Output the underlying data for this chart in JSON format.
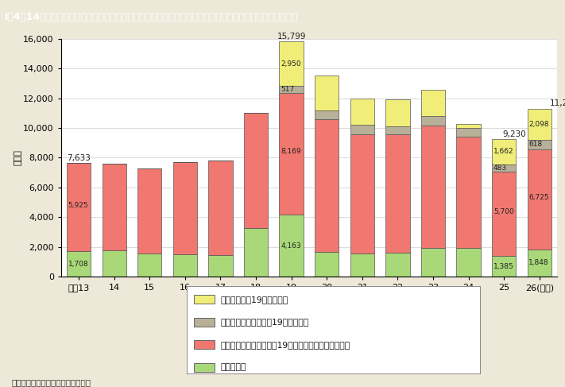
{
  "title": "I－4－14図　都道府県労働局雇用均等室に寄せられた職場におけるセクシュアル・ハラスメントの相談件数",
  "years": [
    "平成13",
    "14",
    "15",
    "16",
    "17",
    "18",
    "19",
    "20",
    "21",
    "22",
    "23",
    "24",
    "25",
    "26(年度)"
  ],
  "jigyounushi": [
    1708,
    1760,
    1540,
    1490,
    1440,
    3250,
    4163,
    1680,
    1580,
    1620,
    1950,
    1930,
    1385,
    1848
  ],
  "josei": [
    5925,
    5840,
    5760,
    6210,
    6360,
    7750,
    8169,
    8920,
    8020,
    7930,
    8200,
    7470,
    5700,
    6725
  ],
  "dansei": [
    0,
    0,
    0,
    0,
    0,
    0,
    517,
    600,
    590,
    580,
    630,
    590,
    483,
    618
  ],
  "sonota": [
    0,
    0,
    0,
    0,
    0,
    0,
    2950,
    2300,
    1810,
    1770,
    1760,
    290,
    1662,
    2098
  ],
  "color_jigyounushi": "#a8d878",
  "color_josei": "#f07870",
  "color_dansei": "#b8b098",
  "color_sonota": "#f0ee78",
  "bg_color": "#ede8d8",
  "plot_bg": "#ffffff",
  "title_bg": "#3a9ab8",
  "title_color": "#ffffff",
  "ylim_max": 16000,
  "ytick_step": 2000,
  "ylabel": "（件）",
  "note": "（備考）厚生労働省資料より作成。",
  "legend_labels": [
    "その他（平成19年度以降）",
    "男性労働者から（平成19年度以降）",
    "女性労働者等から（平成19年度以降女性労働者のみ）",
    "事業主から"
  ]
}
